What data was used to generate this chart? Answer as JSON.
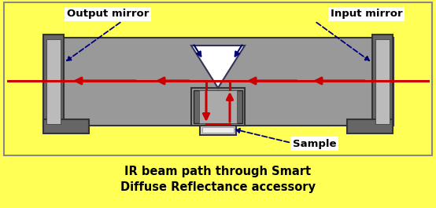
{
  "background_color": "#FFFF55",
  "fig_width": 5.54,
  "fig_height": 2.65,
  "title_line1": "IR beam path through Smart",
  "title_line2": "Diffuse Reflectance accessory",
  "title_fontsize": 10.5,
  "label_output": "Output mirror",
  "label_input": "Input mirror",
  "label_sample": "Sample",
  "body_color": "#999999",
  "body_edge_color": "#333333",
  "dark_gray": "#666666",
  "light_gray": "#BBBBBB",
  "beam_color": "#CC0000",
  "arrow_color": "#000077",
  "white_color": "#FFFFFF",
  "label_bg": "#FFFFFF",
  "label_fontsize": 9.5
}
